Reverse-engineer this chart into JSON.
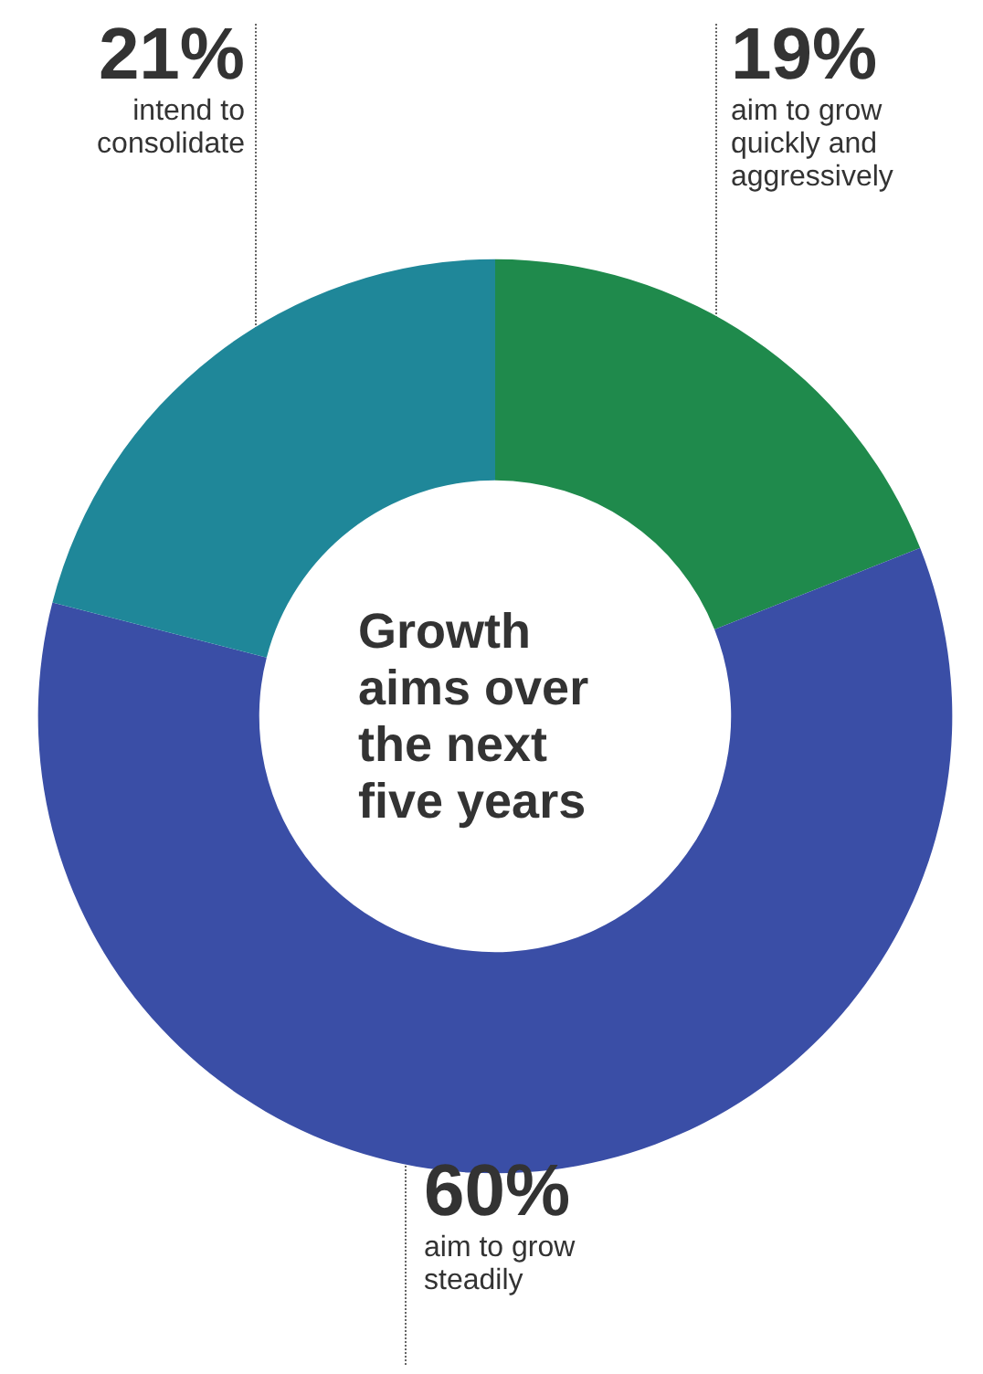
{
  "chart_data": {
    "type": "donut",
    "title": "Growth aims over the next five years",
    "categories": [
      "aim to grow quickly and aggressively",
      "aim to grow steadily",
      "intend to consolidate"
    ],
    "values": [
      19,
      60,
      21
    ],
    "colors": [
      "#1f8a4c",
      "#3a4ea6",
      "#1f8799"
    ],
    "value_labels": [
      "19%",
      "60%",
      "21%"
    ]
  }
}
